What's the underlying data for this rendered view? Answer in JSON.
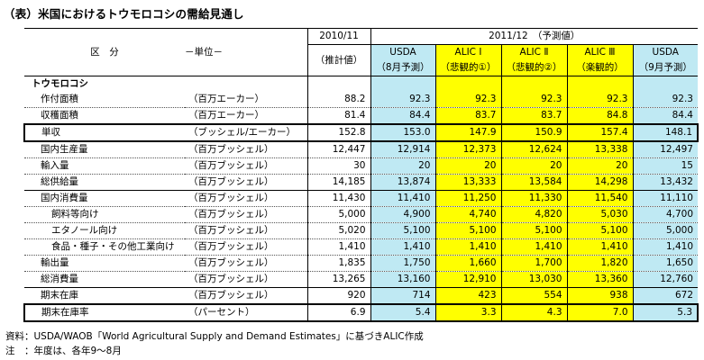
{
  "title": "（表）米国におけるトウモロコシの需給見通し",
  "header": {
    "category_label": "区　分",
    "unit_label": "－単位－",
    "year_2010": "2010/11",
    "year_2011": "2011/12　（予測値）",
    "col_estimate": "（推計値）",
    "columns": [
      {
        "name": "USDA",
        "sub": "（8月予測）"
      },
      {
        "name": "ALIC Ⅰ",
        "sub": "（悲観的①）"
      },
      {
        "name": "ALIC Ⅱ",
        "sub": "（悲観的②）"
      },
      {
        "name": "ALIC Ⅲ",
        "sub": "（楽観的）"
      },
      {
        "name": "USDA",
        "sub": "（9月予測）"
      }
    ]
  },
  "section": "トウモロコシ",
  "rows": [
    {
      "label": "作付面積",
      "unit": "（百万エーカー）",
      "values": [
        "88.2",
        "92.3",
        "92.3",
        "92.3",
        "92.3",
        "92.3"
      ]
    },
    {
      "label": "収穫面積",
      "unit": "（百万エーカー）",
      "values": [
        "81.4",
        "84.4",
        "83.7",
        "83.7",
        "84.8",
        "84.4"
      ]
    },
    {
      "label": "単収",
      "unit": "（ブッシェル/エーカー）",
      "values": [
        "152.8",
        "153.0",
        "147.9",
        "150.9",
        "157.4",
        "148.1"
      ]
    },
    {
      "label": "国内生産量",
      "unit": "（百万ブッシェル）",
      "values": [
        "12,447",
        "12,914",
        "12,373",
        "12,624",
        "13,338",
        "12,497"
      ]
    },
    {
      "label": "輸入量",
      "unit": "（百万ブッシェル）",
      "values": [
        "30",
        "20",
        "20",
        "20",
        "20",
        "15"
      ]
    },
    {
      "label": "総供給量",
      "unit": "（百万ブッシェル）",
      "values": [
        "14,185",
        "13,874",
        "13,333",
        "13,584",
        "14,298",
        "13,432"
      ]
    },
    {
      "label": "国内消費量",
      "unit": "（百万ブッシェル）",
      "values": [
        "11,430",
        "11,410",
        "11,250",
        "11,330",
        "11,540",
        "11,110"
      ]
    },
    {
      "label": "飼料等向け",
      "unit": "（百万ブッシェル）",
      "values": [
        "5,000",
        "4,900",
        "4,740",
        "4,820",
        "5,030",
        "4,700"
      ]
    },
    {
      "label": "エタノール向け",
      "unit": "（百万ブッシェル）",
      "values": [
        "5,020",
        "5,100",
        "5,100",
        "5,100",
        "5,100",
        "5,000"
      ]
    },
    {
      "label": "食品・種子・その他工業向け",
      "unit": "（百万ブッシェル）",
      "values": [
        "1,410",
        "1,410",
        "1,410",
        "1,410",
        "1,410",
        "1,410"
      ]
    },
    {
      "label": "輸出量",
      "unit": "（百万ブッシェル）",
      "values": [
        "1,835",
        "1,750",
        "1,660",
        "1,700",
        "1,820",
        "1,650"
      ]
    },
    {
      "label": "総消費量",
      "unit": "（百万ブッシェル）",
      "values": [
        "13,265",
        "13,160",
        "12,910",
        "13,030",
        "13,360",
        "12,760"
      ]
    },
    {
      "label": "期末在庫",
      "unit": "（百万ブッシェル）",
      "values": [
        "920",
        "714",
        "423",
        "554",
        "938",
        "672"
      ]
    },
    {
      "label": "期末在庫率",
      "unit": "（パーセント）",
      "values": [
        "6.9",
        "5.4",
        "3.3",
        "4.3",
        "7.0",
        "5.3"
      ]
    }
  ],
  "footnotes": {
    "source": "資料：USDA/WAOB「World Agricultural Supply and Demand Estimates」に基づきALIC作成",
    "note": "注　：年度は、各年9～8月"
  }
}
